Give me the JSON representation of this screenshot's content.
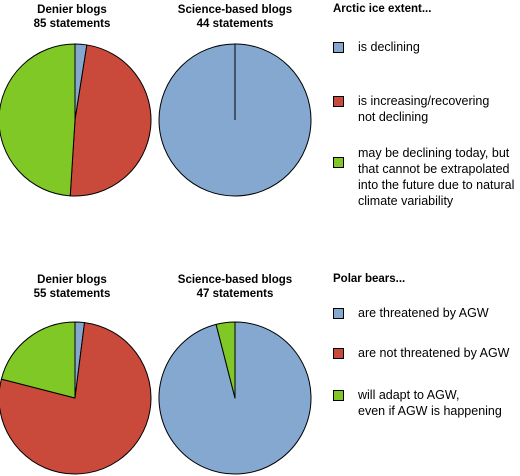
{
  "chart_data": [
    {
      "type": "pie",
      "title": "Denier blogs",
      "subtitle": "85  statements",
      "slices": [
        {
          "label": "is declining",
          "value": 2.5,
          "color": "#85a8d1"
        },
        {
          "label": "is increasing/recovering\nnot declining",
          "value": 48.5,
          "color": "#c9493a"
        },
        {
          "label": "may be declining today, but\nthat cannot be extrapolated\ninto the future due to natural\nclimate variability",
          "value": 49,
          "color": "#7fc826"
        }
      ]
    },
    {
      "type": "pie",
      "title": "Science-based blogs",
      "subtitle": "44 statements",
      "slices": [
        {
          "label": "is declining",
          "value": 100,
          "color": "#85a8d1"
        },
        {
          "label": "is increasing/recovering\nnot declining",
          "value": 0,
          "color": "#c9493a"
        },
        {
          "label": "may be declining today, but\nthat cannot be extrapolated\ninto the future due to natural\nclimate variability",
          "value": 0,
          "color": "#7fc826"
        }
      ]
    },
    {
      "type": "pie",
      "title": "Denier blogs",
      "subtitle": "55 statements",
      "slices": [
        {
          "label": "are threatened by AGW",
          "value": 2,
          "color": "#85a8d1"
        },
        {
          "label": "are not threatened by AGW",
          "value": 77,
          "color": "#c9493a"
        },
        {
          "label": "will adapt to AGW,\neven if AGW is happening",
          "value": 21,
          "color": "#7fc826"
        }
      ]
    },
    {
      "type": "pie",
      "title": "Science-based blogs",
      "subtitle": "47 statements",
      "slices": [
        {
          "label": "are threatened by AGW",
          "value": 96,
          "color": "#85a8d1"
        },
        {
          "label": "are not threatened by AGW",
          "value": 0,
          "color": "#c9493a"
        },
        {
          "label": "will adapt to AGW,\neven if AGW is happening",
          "value": 4,
          "color": "#7fc826"
        }
      ]
    }
  ],
  "legends": [
    {
      "title": "Arctic ice extent...",
      "items": [
        {
          "label": "is declining",
          "color": "#85a8d1"
        },
        {
          "label": "is increasing/recovering\nnot declining",
          "color": "#c9493a"
        },
        {
          "label": "may be declining today, but\nthat cannot be extrapolated\ninto the future due to natural\nclimate variability",
          "color": "#7fc826"
        }
      ]
    },
    {
      "title": "Polar bears...",
      "items": [
        {
          "label": "are threatened by AGW",
          "color": "#85a8d1"
        },
        {
          "label": "are not threatened by AGW",
          "color": "#c9493a"
        },
        {
          "label": "will adapt to AGW,\neven if AGW is happening",
          "color": "#7fc826"
        }
      ]
    }
  ]
}
